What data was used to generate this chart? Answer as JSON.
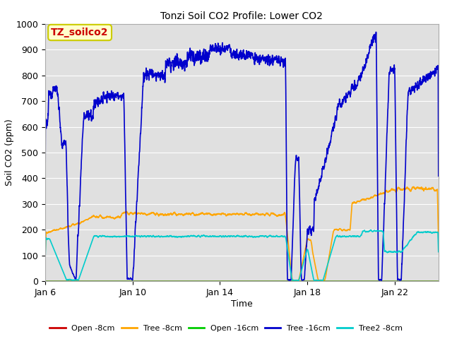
{
  "title": "Tonzi Soil CO2 Profile: Lower CO2",
  "xlabel": "Time",
  "ylabel": "Soil CO2 (ppm)",
  "ylim": [
    0,
    1000
  ],
  "background_color": "#ffffff",
  "plot_bg_color": "#e0e0e0",
  "legend_label": "TZ_soilco2",
  "xtick_labels": [
    "Jan 6",
    "Jan 10",
    "Jan 14",
    "Jan 18",
    "Jan 22"
  ],
  "xtick_positions": [
    0,
    4,
    8,
    12,
    16
  ],
  "ytick_labels": [
    "0",
    "100",
    "200",
    "300",
    "400",
    "500",
    "600",
    "700",
    "800",
    "900",
    "1000"
  ],
  "ytick_positions": [
    0,
    100,
    200,
    300,
    400,
    500,
    600,
    700,
    800,
    900,
    1000
  ],
  "series": {
    "open_8cm": {
      "color": "#cc0000",
      "lw": 1.2,
      "label": "Open -8cm"
    },
    "tree_8cm": {
      "color": "#ffa500",
      "lw": 1.2,
      "label": "Tree -8cm"
    },
    "open_16cm": {
      "color": "#00cc00",
      "lw": 1.2,
      "label": "Open -16cm"
    },
    "tree_16cm": {
      "color": "#0000cc",
      "lw": 1.2,
      "label": "Tree -16cm"
    },
    "tree2_8cm": {
      "color": "#00cccc",
      "lw": 1.2,
      "label": "Tree2 -8cm"
    }
  },
  "annotation_box_color": "#ffffcc",
  "annotation_text_color": "#cc0000",
  "annotation_border_color": "#cccc00",
  "total_days": 18
}
